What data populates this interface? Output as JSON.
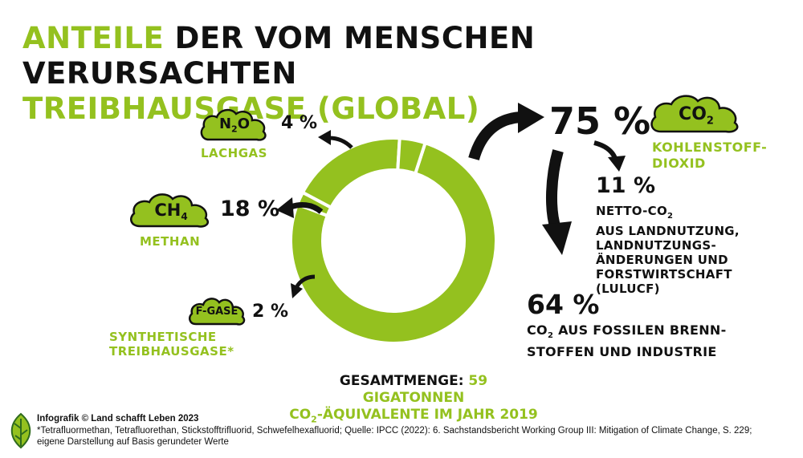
{
  "title": {
    "line1_accent": "ANTEILE",
    "line1_rest": "DER VOM MENSCHEN VERURSACHTEN",
    "line2": "TREIBHAUSGASE (GLOBAL)"
  },
  "colors": {
    "accent": "#94c11f",
    "ring_separator": "#ffffff",
    "text": "#111111"
  },
  "chart_data": {
    "type": "pie",
    "variant": "donut",
    "title": "ANTEILE DER VOM MENSCHEN VERURSACHTEN TREIBHAUSGASE (GLOBAL)",
    "unit": "%",
    "slices": [
      {
        "id": "co2_total",
        "label": "KOHLENSTOFFDIOXID",
        "value": 75,
        "breakdown": [
          {
            "label": "NETTO-CO2 AUS LANDNUTZUNG, LANDNUTZUNGSÄNDERUNGEN UND FORSTWIRTSCHAFT (LULUCF)",
            "value": 11
          },
          {
            "label": "CO2 AUS FOSSILEN BRENNSTOFFEN UND INDUSTRIE",
            "value": 64
          }
        ]
      },
      {
        "id": "f_gase",
        "label": "SYNTHETISCHE TREIBHAUSGASE*",
        "value": 2
      },
      {
        "id": "ch4",
        "label": "METHAN",
        "value": 18
      },
      {
        "id": "n2o",
        "label": "LACHGAS",
        "value": 4
      }
    ],
    "total": "59 GIGATONNEN CO2-ÄQUIVALENTE IM JAHR 2019"
  },
  "co2": {
    "pct": "75 %",
    "cloud_main": "CO",
    "cloud_sub": "2",
    "label_line1": "KOHLENSTOFF-",
    "label_line2": "DIOXID",
    "lulucf_pct": "11 %",
    "lulucf_l1a": "NETTO-CO",
    "lulucf_l1sub": "2",
    "lulucf_l2": "AUS LANDNUTZUNG,",
    "lulucf_l3": "LANDNUTZUNGS-",
    "lulucf_l4": "ÄNDERUNGEN UND",
    "lulucf_l5": "FORSTWIRTSCHAFT",
    "lulucf_l6": "(LULUCF)",
    "fossil_pct": "64 %",
    "fossil_l1a": "CO",
    "fossil_l1sub": "2",
    "fossil_l1b": " AUS FOSSILEN BRENN-",
    "fossil_l2": "STOFFEN UND INDUSTRIE"
  },
  "n2o": {
    "cloud_main": "N",
    "cloud_sub": "2",
    "cloud_tail": "O",
    "pct": "4 %",
    "label": "LACHGAS"
  },
  "ch4": {
    "cloud_main": "CH",
    "cloud_sub": "4",
    "pct": "18 %",
    "label": "METHAN"
  },
  "fgas": {
    "cloud_text": "F-GASE",
    "pct": "2 %",
    "label_line1": "SYNTHETISCHE",
    "label_line2": "TREIBHAUSGASE*"
  },
  "total": {
    "prefix": "GESAMTMENGE:",
    "line1_rest": " 59 GIGATONNEN",
    "line2_a": "CO",
    "line2_sub": "2",
    "line2_b": "-ÄQUIVALENTE IM JAHR 2019"
  },
  "footer": {
    "credit": "Infografik © Land schafft Leben 2023",
    "note_line1": "*Tetrafluormethan, Tetrafluorethan, Stickstofftrifluorid, Schwefelhexafluorid; Quelle: IPCC (2022): 6. Sachstandsbericht Working Group III: Mitigation of Climate Change, S. 229;",
    "note_line2": "eigene Darstellung auf Basis gerundeter Werte"
  }
}
